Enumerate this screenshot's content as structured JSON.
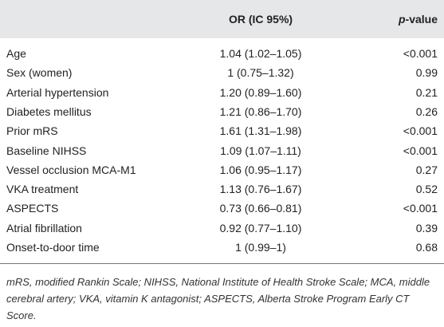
{
  "table": {
    "header": [
      "",
      "OR (IC 95%)",
      "p-value"
    ],
    "rows": [
      [
        "Age",
        "1.04 (1.02–1.05)",
        "<0.001"
      ],
      [
        "Sex (women)",
        "1 (0.75–1.32)",
        "0.99"
      ],
      [
        "Arterial hypertension",
        "1.20 (0.89–1.60)",
        "0.21"
      ],
      [
        "Diabetes mellitus",
        "1.21 (0.86–1.70)",
        "0.26"
      ],
      [
        "Prior mRS",
        "1.61 (1.31–1.98)",
        "<0.001"
      ],
      [
        "Baseline NIHSS",
        "1.09 (1.07–1.11)",
        "<0.001"
      ],
      [
        "Vessel occlusion MCA-M1",
        "1.06 (0.95–1.17)",
        "0.27"
      ],
      [
        "VKA treatment",
        "1.13 (0.76–1.67)",
        "0.52"
      ],
      [
        "ASPECTS",
        "0.73 (0.66–0.81)",
        "<0.001"
      ],
      [
        "Atrial fibrillation",
        "0.92 (0.77–1.10)",
        "0.39"
      ],
      [
        "Onset-to-door time",
        "1 (0.99–1)",
        "0.68"
      ]
    ],
    "footnote": "mRS, modified Rankin Scale; NIHSS, National Institute of Health Stroke Scale; MCA, middle cerebral artery; VKA, vitamin K antagonist; ASPECTS, Alberta Stroke Program Early CT Score."
  }
}
